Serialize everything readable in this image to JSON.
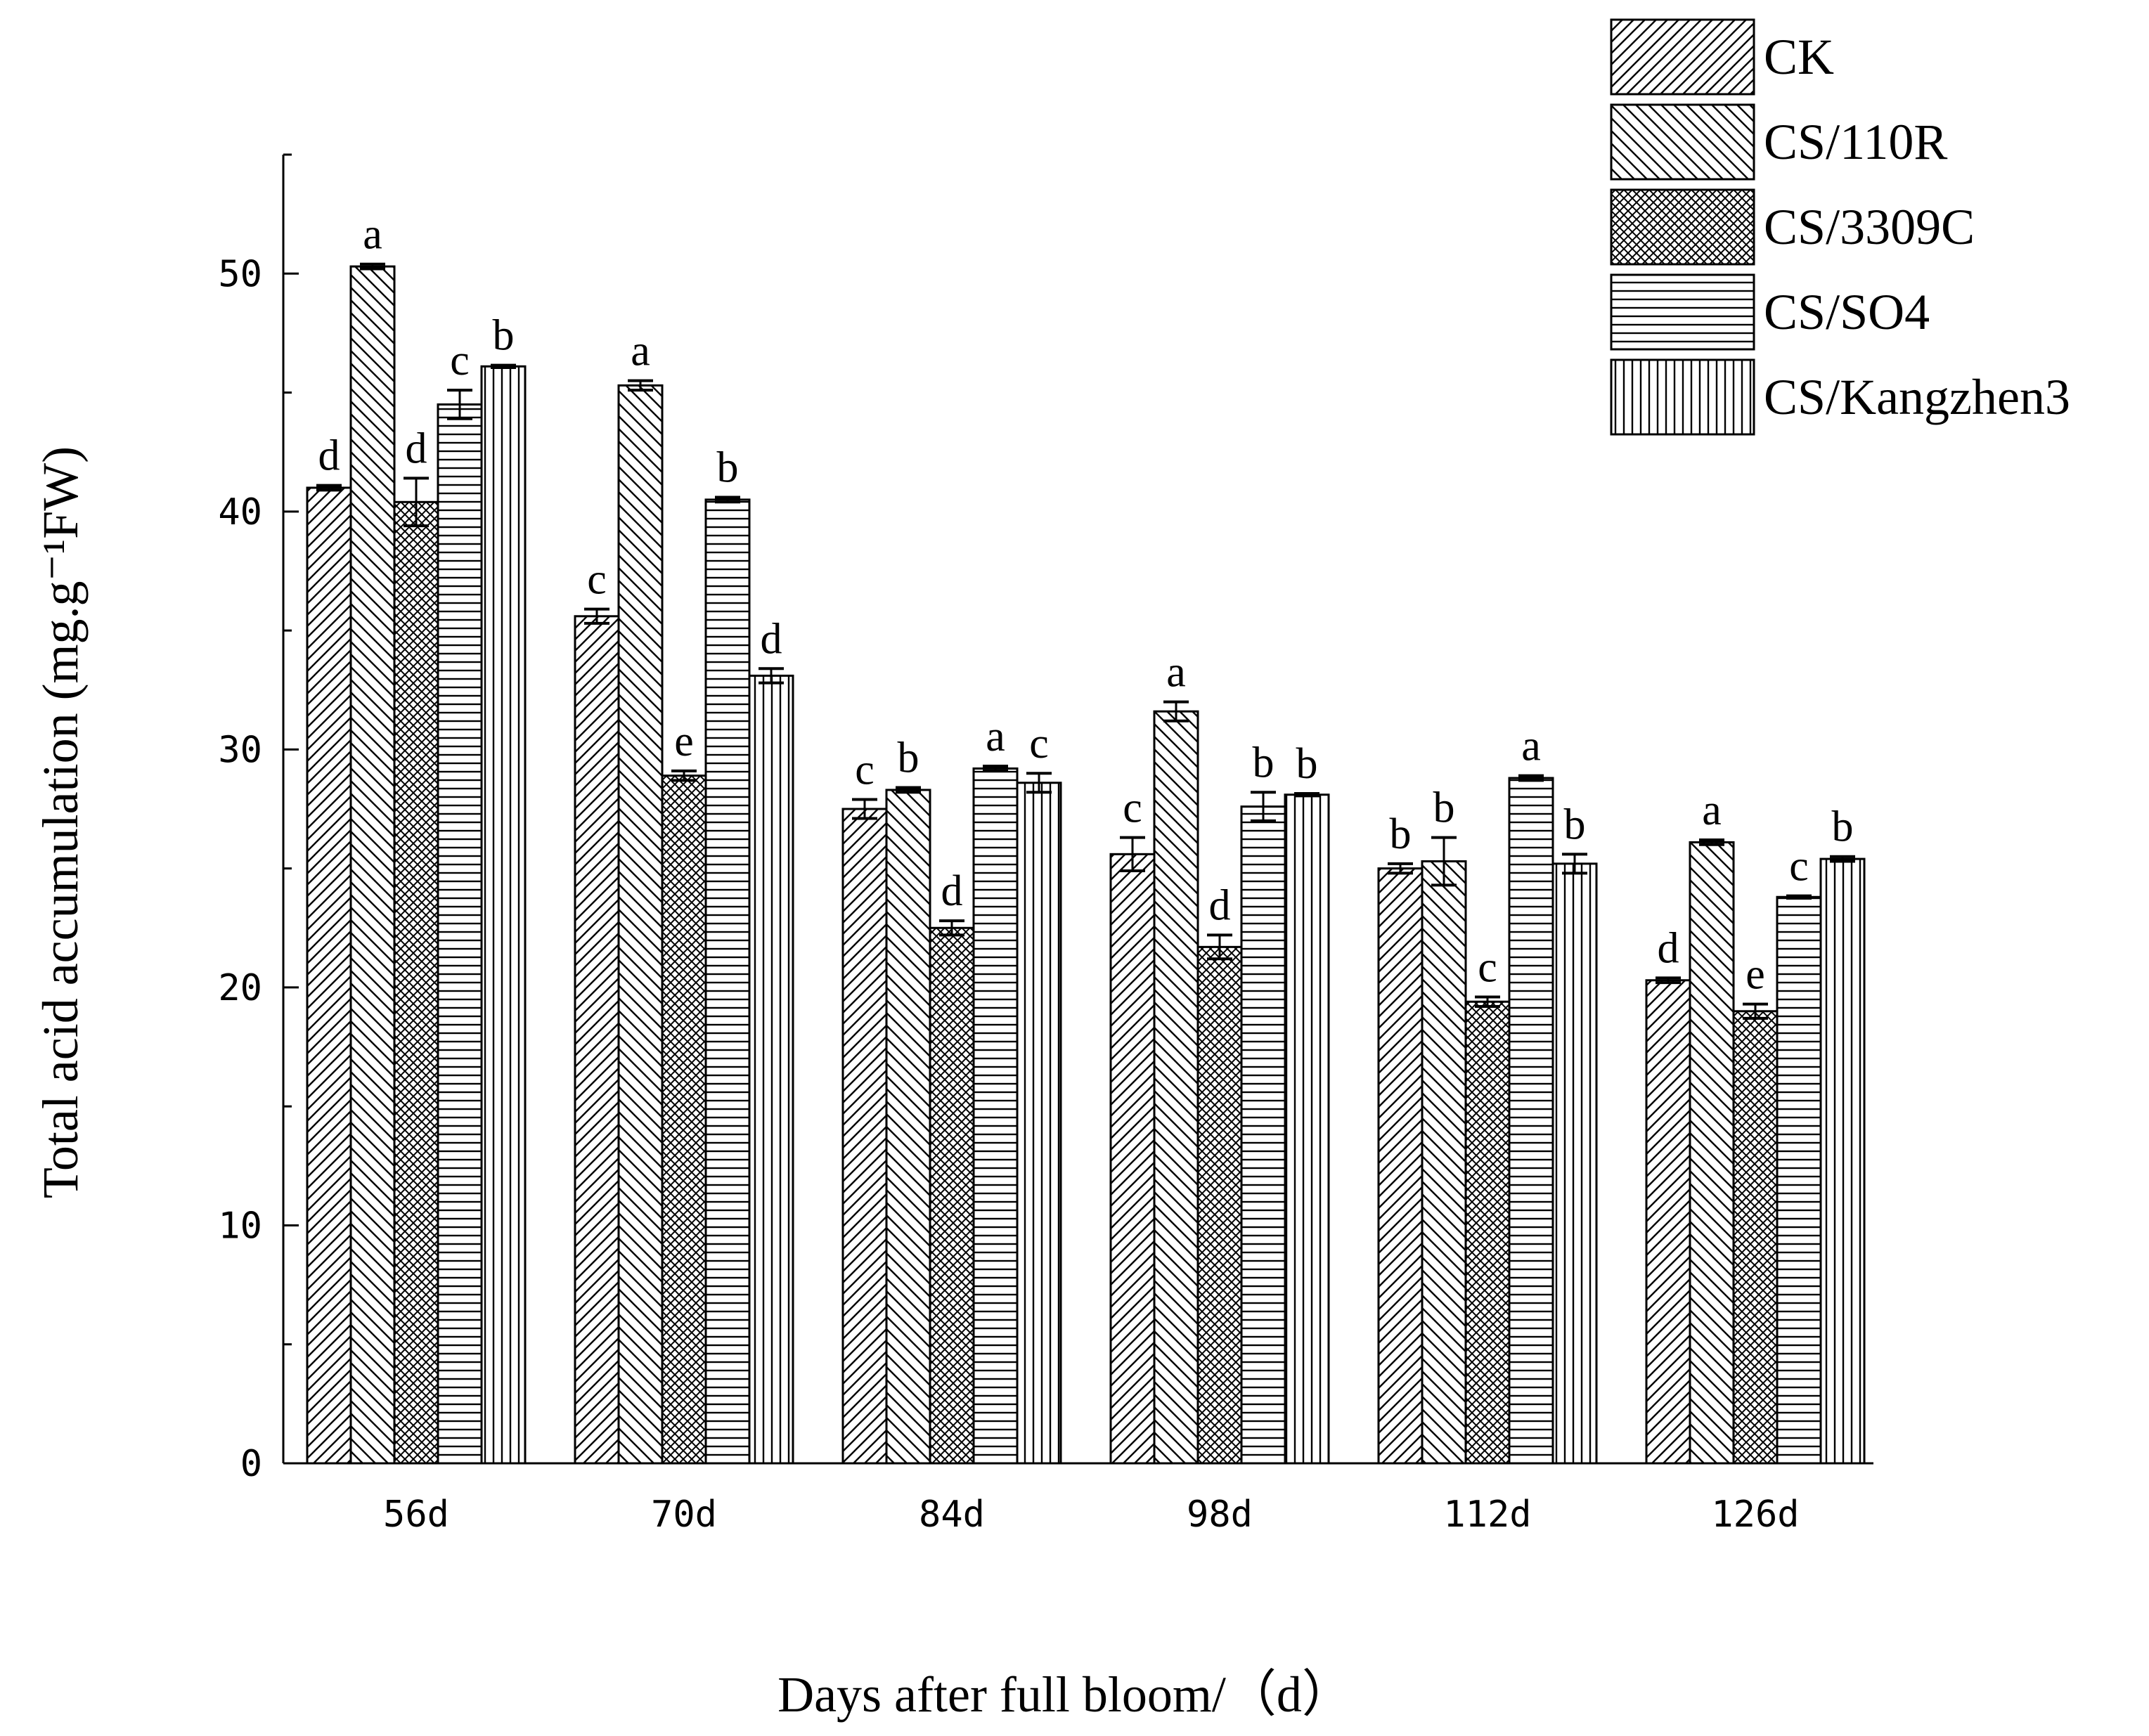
{
  "chart_data": {
    "type": "bar",
    "xlabel": "Days after full bloom/（d）",
    "ylabel": "Total acid accumulation (mg.g⁻¹FW)",
    "ylim": [
      0,
      55
    ],
    "yticks": [
      0,
      10,
      20,
      30,
      40,
      50
    ],
    "categories": [
      "56d",
      "70d",
      "84d",
      "98d",
      "112d",
      "126d"
    ],
    "legend_position": "top-right",
    "grid": false,
    "series": [
      {
        "name": "CK",
        "pattern": "diag-up",
        "values": [
          41.0,
          35.6,
          27.5,
          25.6,
          25.0,
          20.3
        ],
        "errors": [
          0.1,
          0.3,
          0.4,
          0.7,
          0.2,
          0.1
        ],
        "letters": [
          "d",
          "c",
          "c",
          "c",
          "b",
          "d"
        ]
      },
      {
        "name": "CS/110R",
        "pattern": "diag-down",
        "values": [
          50.3,
          45.3,
          28.3,
          31.6,
          25.3,
          26.1
        ],
        "errors": [
          0.1,
          0.2,
          0.1,
          0.4,
          1.0,
          0.1
        ],
        "letters": [
          "a",
          "a",
          "b",
          "a",
          "b",
          "a"
        ]
      },
      {
        "name": "CS/3309C",
        "pattern": "crosshatch",
        "values": [
          40.4,
          28.9,
          22.5,
          21.7,
          19.4,
          19.0
        ],
        "errors": [
          1.0,
          0.2,
          0.3,
          0.5,
          0.2,
          0.3
        ],
        "letters": [
          "d",
          "e",
          "d",
          "d",
          "c",
          "e"
        ]
      },
      {
        "name": "CS/SO4",
        "pattern": "horizontal",
        "values": [
          44.5,
          40.5,
          29.2,
          27.6,
          28.8,
          23.8
        ],
        "errors": [
          0.6,
          0.1,
          0.1,
          0.6,
          0.1,
          0.05
        ],
        "letters": [
          "c",
          "b",
          "a",
          "b",
          "a",
          "c"
        ]
      },
      {
        "name": "CS/Kangzhen3",
        "pattern": "vertical",
        "values": [
          46.1,
          33.1,
          28.6,
          28.1,
          25.2,
          25.4
        ],
        "errors": [
          0.05,
          0.3,
          0.4,
          0.05,
          0.4,
          0.1
        ],
        "letters": [
          "b",
          "d",
          "c",
          "b",
          "b",
          "b"
        ]
      }
    ]
  }
}
